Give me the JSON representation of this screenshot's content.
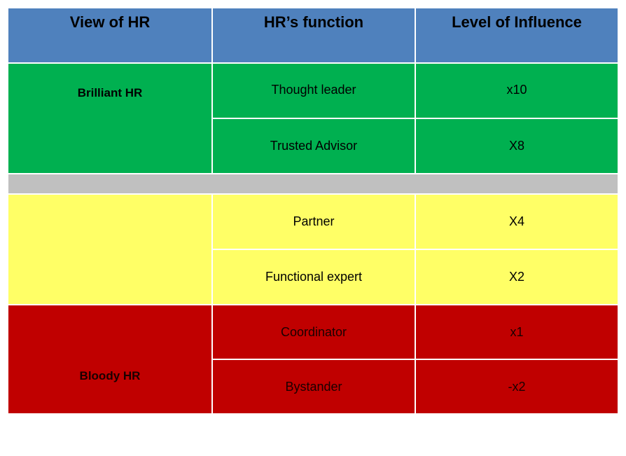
{
  "table": {
    "headers": [
      "View of HR",
      "HR’s function",
      "Level of Influence"
    ],
    "groups": {
      "brilliant_label": "Brilliant HR",
      "middle_label": "",
      "bloody_label": "Bloody HR"
    },
    "rows": [
      {
        "function": "Thought leader",
        "influence": "x10"
      },
      {
        "function": "Trusted Advisor",
        "influence": "X8"
      },
      {
        "function": "Partner",
        "influence": "X4"
      },
      {
        "function": "Functional expert",
        "influence": "X2"
      },
      {
        "function": "Coordinator",
        "influence": "x1"
      },
      {
        "function": "Bystander",
        "influence": "-x2"
      }
    ],
    "colors": {
      "header": "#4f81bd",
      "brilliant": "#00b050",
      "separator": "#c0c0c0",
      "middle": "#ffff66",
      "bloody": "#c00000"
    }
  }
}
